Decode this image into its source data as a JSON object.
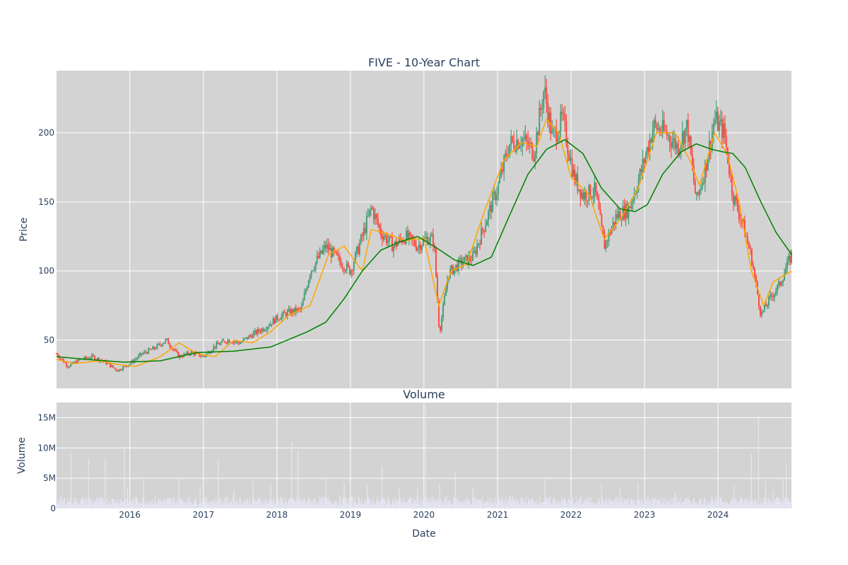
{
  "chart_data": [
    {
      "type": "candlestick",
      "title": "FIVE - 10-Year Chart",
      "xlabel": "",
      "ylabel": "Price",
      "x_ticks": [
        "2016",
        "2017",
        "2018",
        "2019",
        "2020",
        "2021",
        "2022",
        "2023",
        "2024"
      ],
      "y_ticks": [
        50,
        100,
        150,
        200
      ],
      "xlim": [
        "2015-01-02",
        "2024-12-31"
      ],
      "ylim": [
        15,
        245
      ],
      "grid": true,
      "background": "#d3d3d3",
      "series": [
        {
          "kind": "close",
          "color_up": "#3d9970",
          "color_down": "#ff4136",
          "x": [
            "2015-01-02",
            "2015-03-01",
            "2015-05-01",
            "2015-07-01",
            "2015-09-01",
            "2015-11-01",
            "2016-01-01",
            "2016-03-01",
            "2016-05-01",
            "2016-07-01",
            "2016-09-01",
            "2016-11-01",
            "2017-01-01",
            "2017-03-01",
            "2017-05-01",
            "2017-07-01",
            "2017-09-01",
            "2017-11-01",
            "2018-01-01",
            "2018-03-01",
            "2018-05-01",
            "2018-06-15",
            "2018-09-01",
            "2018-11-01",
            "2019-01-01",
            "2019-03-01",
            "2019-04-15",
            "2019-06-01",
            "2019-08-01",
            "2019-10-01",
            "2019-12-01",
            "2020-01-15",
            "2020-02-20",
            "2020-03-18",
            "2020-05-01",
            "2020-07-01",
            "2020-09-01",
            "2020-11-01",
            "2021-01-01",
            "2021-03-01",
            "2021-05-01",
            "2021-07-01",
            "2021-08-20",
            "2021-10-01",
            "2021-11-20",
            "2022-01-15",
            "2022-03-01",
            "2022-05-01",
            "2022-06-15",
            "2022-08-15",
            "2022-10-15",
            "2022-12-15",
            "2023-02-15",
            "2023-04-15",
            "2023-06-15",
            "2023-08-01",
            "2023-09-15",
            "2023-11-01",
            "2023-12-15",
            "2024-02-01",
            "2024-03-15",
            "2024-05-01",
            "2024-06-15",
            "2024-08-01",
            "2024-09-15",
            "2024-11-01",
            "2024-12-31"
          ],
          "close": [
            40,
            31,
            36,
            38,
            34,
            28,
            33,
            40,
            44,
            50,
            38,
            41,
            38,
            46,
            50,
            48,
            54,
            59,
            66,
            70,
            72,
            100,
            118,
            108,
            100,
            125,
            146,
            128,
            118,
            125,
            118,
            124,
            122,
            55,
            98,
            106,
            110,
            135,
            160,
            192,
            196,
            186,
            232,
            196,
            210,
            168,
            155,
            158,
            118,
            140,
            145,
            172,
            205,
            200,
            190,
            205,
            150,
            176,
            210,
            200,
            155,
            135,
            110,
            68,
            80,
            90,
            112
          ]
        },
        {
          "kind": "ma",
          "name": "",
          "color": "#ffa500",
          "x": [
            "2015-01-02",
            "2015-04-01",
            "2015-08-01",
            "2015-11-15",
            "2016-02-01",
            "2016-06-01",
            "2016-09-01",
            "2016-12-01",
            "2017-03-01",
            "2017-06-01",
            "2017-09-01",
            "2017-12-01",
            "2018-03-01",
            "2018-06-15",
            "2018-09-15",
            "2018-12-01",
            "2019-03-01",
            "2019-04-15",
            "2019-07-01",
            "2019-10-01",
            "2020-01-01",
            "2020-03-15",
            "2020-05-15",
            "2020-08-01",
            "2020-11-01",
            "2021-02-01",
            "2021-05-01",
            "2021-07-15",
            "2021-09-01",
            "2021-11-01",
            "2022-01-01",
            "2022-04-01",
            "2022-06-15",
            "2022-09-01",
            "2022-12-01",
            "2023-03-01",
            "2023-06-01",
            "2023-08-15",
            "2023-10-01",
            "2023-12-15",
            "2024-02-15",
            "2024-04-15",
            "2024-06-15",
            "2024-08-15",
            "2024-10-01",
            "2024-12-31"
          ],
          "values": [
            36,
            33,
            35,
            32,
            31,
            38,
            48,
            40,
            38,
            50,
            48,
            56,
            68,
            75,
            112,
            118,
            100,
            130,
            127,
            122,
            124,
            75,
            100,
            105,
            145,
            180,
            193,
            190,
            210,
            200,
            168,
            155,
            123,
            137,
            160,
            200,
            200,
            180,
            162,
            200,
            185,
            150,
            100,
            75,
            92,
            100
          ]
        },
        {
          "kind": "ma",
          "name": "",
          "color": "#008000",
          "x": [
            "2015-01-02",
            "2015-06-01",
            "2015-12-01",
            "2016-06-01",
            "2016-12-01",
            "2017-06-01",
            "2017-12-01",
            "2018-06-01",
            "2018-09-01",
            "2018-12-01",
            "2019-03-01",
            "2019-06-01",
            "2019-09-01",
            "2019-12-01",
            "2020-03-01",
            "2020-06-01",
            "2020-09-01",
            "2020-12-01",
            "2021-03-01",
            "2021-06-01",
            "2021-09-01",
            "2021-12-01",
            "2022-03-01",
            "2022-06-01",
            "2022-09-01",
            "2022-11-15",
            "2023-01-15",
            "2023-04-01",
            "2023-07-01",
            "2023-09-15",
            "2023-12-01",
            "2024-02-01",
            "2024-03-15",
            "2024-05-15",
            "2024-08-01",
            "2024-10-15",
            "2024-12-31"
          ],
          "values": [
            38,
            36,
            34,
            35,
            41,
            42,
            45,
            56,
            63,
            80,
            100,
            115,
            121,
            125,
            117,
            108,
            104,
            110,
            140,
            170,
            188,
            195,
            185,
            160,
            145,
            143,
            148,
            170,
            186,
            192,
            188,
            186,
            185,
            175,
            150,
            128,
            112
          ]
        }
      ]
    },
    {
      "type": "bar",
      "title": "Volume",
      "xlabel": "Date",
      "ylabel": "Volume",
      "x_ticks": [
        "2016",
        "2017",
        "2018",
        "2019",
        "2020",
        "2021",
        "2022",
        "2023",
        "2024"
      ],
      "y_ticks": [
        {
          "v": 0,
          "label": "0"
        },
        {
          "v": 5,
          "label": "5M"
        },
        {
          "v": 10,
          "label": "10M"
        },
        {
          "v": 15,
          "label": "15M"
        }
      ],
      "ylim": [
        0,
        17.5
      ],
      "unit": "M",
      "color": "#e6e6f5",
      "spikes": [
        {
          "x": "2015-03-15",
          "v": 9
        },
        {
          "x": "2015-06-10",
          "v": 8.2
        },
        {
          "x": "2015-09-01",
          "v": 8.4
        },
        {
          "x": "2015-12-05",
          "v": 10.3
        },
        {
          "x": "2015-12-20",
          "v": 3.5
        },
        {
          "x": "2016-03-10",
          "v": 4.8
        },
        {
          "x": "2016-09-01",
          "v": 4.8
        },
        {
          "x": "2016-12-15",
          "v": 3.8
        },
        {
          "x": "2017-03-15",
          "v": 7.8
        },
        {
          "x": "2017-06-01",
          "v": 3
        },
        {
          "x": "2017-09-05",
          "v": 4.5
        },
        {
          "x": "2017-12-01",
          "v": 4
        },
        {
          "x": "2018-03-15",
          "v": 11
        },
        {
          "x": "2018-04-15",
          "v": 9.6
        },
        {
          "x": "2018-09-01",
          "v": 5
        },
        {
          "x": "2018-12-01",
          "v": 4.3
        },
        {
          "x": "2019-03-25",
          "v": 4
        },
        {
          "x": "2019-06-07",
          "v": 7
        },
        {
          "x": "2019-09-01",
          "v": 3.5
        },
        {
          "x": "2019-12-01",
          "v": 3.5
        },
        {
          "x": "2020-01-10",
          "v": 17
        },
        {
          "x": "2020-03-20",
          "v": 4
        },
        {
          "x": "2020-06-05",
          "v": 6
        },
        {
          "x": "2020-09-01",
          "v": 3.5
        },
        {
          "x": "2021-03-15",
          "v": 2
        },
        {
          "x": "2021-08-25",
          "v": 5.2
        },
        {
          "x": "2021-12-01",
          "v": 2
        },
        {
          "x": "2022-06-01",
          "v": 4
        },
        {
          "x": "2022-09-01",
          "v": 3.5
        },
        {
          "x": "2022-11-30",
          "v": 4.2
        },
        {
          "x": "2023-06-01",
          "v": 2.5
        },
        {
          "x": "2023-12-01",
          "v": 2
        },
        {
          "x": "2024-03-20",
          "v": 3.8
        },
        {
          "x": "2024-06-15",
          "v": 9
        },
        {
          "x": "2024-07-20",
          "v": 15.5
        },
        {
          "x": "2024-08-25",
          "v": 4.5
        },
        {
          "x": "2024-10-01",
          "v": 3
        },
        {
          "x": "2024-12-05",
          "v": 7.2
        },
        {
          "x": "2024-11-20",
          "v": 5
        }
      ]
    }
  ]
}
